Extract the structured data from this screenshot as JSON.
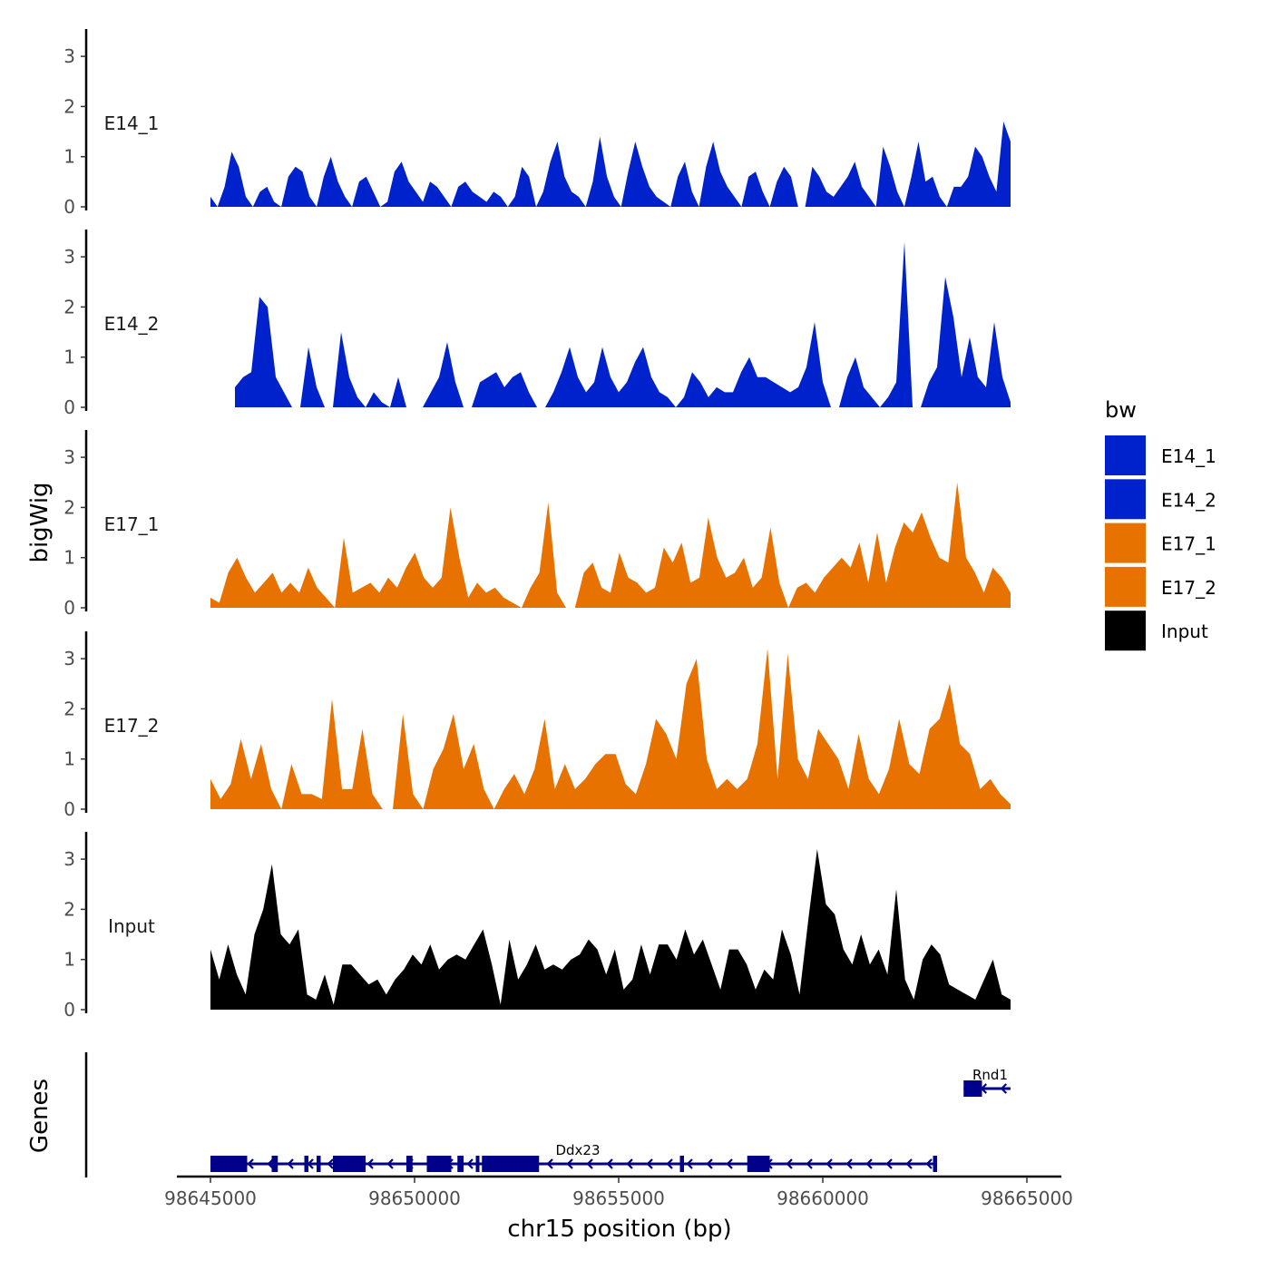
{
  "chart_data": {
    "type": "area",
    "chromosome": "chr15",
    "xlabel": "chr15 position (bp)",
    "ylabel_tracks": "bigWig",
    "ylabel_genes": "Genes",
    "xlim": [
      98644400,
      98665000
    ],
    "x_ticks": [
      98645000,
      98650000,
      98655000,
      98660000,
      98665000
    ],
    "x_tick_labels": [
      "98645000",
      "98650000",
      "98655000",
      "98660000",
      "98665000"
    ],
    "ylim": [
      0,
      3.5
    ],
    "y_ticks": [
      0,
      1,
      2,
      3
    ],
    "y_tick_labels": [
      "0",
      "1",
      "2",
      "3"
    ],
    "legend": {
      "title": "bw",
      "entries": [
        {
          "label": "E14_1",
          "color": "#0022cc"
        },
        {
          "label": "E14_2",
          "color": "#0022cc"
        },
        {
          "label": "E17_1",
          "color": "#e87200"
        },
        {
          "label": "E17_2",
          "color": "#e87200"
        },
        {
          "label": "Input",
          "color": "#000000"
        }
      ]
    },
    "series": [
      {
        "name": "E14_1",
        "color": "#0022cc",
        "x_start": 98645000,
        "x_end": 98664600,
        "values": [
          0.2,
          0,
          0.4,
          1.1,
          0.8,
          0.2,
          0,
          0.3,
          0.4,
          0.1,
          0,
          0.6,
          0.8,
          0.7,
          0.2,
          0,
          0.6,
          1.0,
          0.5,
          0.2,
          0,
          0.5,
          0.6,
          0.3,
          0,
          0.1,
          0.7,
          0.9,
          0.5,
          0.3,
          0.1,
          0.5,
          0.4,
          0.2,
          0,
          0.4,
          0.5,
          0.3,
          0.2,
          0.1,
          0.3,
          0.2,
          0,
          0.2,
          0.8,
          0.6,
          0,
          0.3,
          0.9,
          1.3,
          0.6,
          0.3,
          0.2,
          0,
          0.5,
          1.4,
          0.6,
          0.2,
          0,
          0.7,
          1.3,
          0.8,
          0.4,
          0.2,
          0.1,
          0,
          0.6,
          0.9,
          0.3,
          0,
          0.8,
          1.3,
          0.7,
          0.4,
          0.2,
          0,
          0.6,
          0.7,
          0.3,
          0,
          0.5,
          0.8,
          0.6,
          0,
          0,
          0.8,
          0.6,
          0.3,
          0.2,
          0.4,
          0.6,
          0.9,
          0.4,
          0.2,
          0,
          1.2,
          0.8,
          0.3,
          0,
          0.6,
          1.3,
          0.5,
          0.6,
          0.2,
          0,
          0.4,
          0.4,
          0.6,
          1.2,
          1.0,
          0.6,
          0.3,
          1.7,
          1.3
        ]
      },
      {
        "name": "E14_2",
        "color": "#0022cc",
        "x_start": 98645600,
        "x_end": 98664600,
        "values": [
          0.4,
          0.6,
          0.7,
          2.2,
          2.0,
          0.6,
          0.3,
          0,
          0,
          1.2,
          0.4,
          0,
          0,
          1.5,
          0.6,
          0.2,
          0,
          0.3,
          0.1,
          0,
          0.6,
          0,
          0,
          0,
          0.3,
          0.6,
          1.3,
          0.5,
          0,
          0,
          0.5,
          0.6,
          0.7,
          0.4,
          0.6,
          0.7,
          0.3,
          0,
          0,
          0.3,
          0.7,
          1.2,
          0.6,
          0.3,
          0.5,
          1.2,
          0.6,
          0.3,
          0.5,
          0.9,
          1.2,
          0.6,
          0.3,
          0.2,
          0,
          0.2,
          0.7,
          0.5,
          0.2,
          0.4,
          0.3,
          0.3,
          0.7,
          1.0,
          0.6,
          0.6,
          0.5,
          0.4,
          0.3,
          0.4,
          0.8,
          1.7,
          0.5,
          0,
          0,
          0.6,
          1.0,
          0.4,
          0.2,
          0,
          0.2,
          0.5,
          3.3,
          0,
          0,
          0.5,
          0.8,
          2.6,
          1.8,
          0.6,
          1.4,
          0.6,
          0.4,
          1.7,
          0.6,
          0.1
        ]
      },
      {
        "name": "E17_1",
        "color": "#e87200",
        "x_start": 98645000,
        "x_end": 98664600,
        "values": [
          0.2,
          0.1,
          0.7,
          1.0,
          0.6,
          0.3,
          0.5,
          0.7,
          0.3,
          0.5,
          0.3,
          0.8,
          0.4,
          0.2,
          0,
          1.4,
          0.3,
          0.4,
          0.5,
          0.3,
          0.6,
          0.4,
          0.8,
          1.1,
          0.6,
          0.4,
          0.6,
          2.0,
          1.0,
          0.2,
          0.5,
          0.3,
          0.4,
          0.2,
          0.1,
          0,
          0.4,
          0.7,
          2.1,
          0.3,
          0,
          0,
          0.7,
          0.9,
          0.4,
          0.3,
          1.1,
          0.6,
          0.5,
          0.3,
          0.4,
          1.2,
          0.9,
          1.3,
          0.5,
          0.6,
          1.8,
          1.0,
          0.6,
          0.7,
          1.0,
          0.4,
          0.6,
          1.6,
          0.5,
          0,
          0.4,
          0.5,
          0.3,
          0.6,
          0.8,
          1.0,
          0.8,
          1.3,
          0.5,
          1.5,
          0.5,
          1.2,
          1.7,
          1.5,
          1.9,
          1.4,
          1.0,
          0.9,
          2.5,
          1.0,
          0.7,
          0.3,
          0.8,
          0.6,
          0.3
        ]
      },
      {
        "name": "E17_2",
        "color": "#e87200",
        "x_start": 98645000,
        "x_end": 98664600,
        "values": [
          0.6,
          0.2,
          0.5,
          1.4,
          0.6,
          1.3,
          0.4,
          0,
          0.9,
          0.3,
          0.3,
          0.2,
          2.2,
          0.4,
          0.4,
          1.6,
          0.3,
          0,
          0,
          1.9,
          0.3,
          0,
          0.8,
          1.2,
          1.9,
          0.8,
          1.3,
          0.4,
          0,
          0.4,
          0.7,
          0.3,
          0.8,
          1.8,
          0.4,
          0.9,
          0.4,
          0.6,
          0.9,
          1.1,
          1.1,
          0.5,
          0.3,
          0.9,
          1.8,
          1.5,
          1.0,
          2.5,
          3.0,
          1.0,
          0.4,
          0.6,
          0.4,
          0.6,
          1.3,
          3.2,
          0.6,
          3.1,
          1.0,
          0.6,
          1.6,
          1.3,
          1.0,
          0.4,
          1.5,
          0.6,
          0.3,
          0.8,
          1.8,
          0.9,
          0.7,
          1.6,
          1.8,
          2.5,
          1.3,
          1.1,
          0.4,
          0.6,
          0.3,
          0.1
        ]
      },
      {
        "name": "Input",
        "color": "#000000",
        "x_start": 98645000,
        "x_end": 98664600,
        "values": [
          1.2,
          0.6,
          1.3,
          0.7,
          0.3,
          1.5,
          2.0,
          2.9,
          1.5,
          1.3,
          1.6,
          0.3,
          0.2,
          0.7,
          0.1,
          0.9,
          0.9,
          0.7,
          0.5,
          0.6,
          0.3,
          0.6,
          0.8,
          1.1,
          0.9,
          1.3,
          0.8,
          1.0,
          1.1,
          1.0,
          1.3,
          1.6,
          0.9,
          0.1,
          1.4,
          0.6,
          0.9,
          1.3,
          0.8,
          0.9,
          0.8,
          1.0,
          1.1,
          1.4,
          1.2,
          0.7,
          1.2,
          0.4,
          0.6,
          1.3,
          0.7,
          1.3,
          1.3,
          1.0,
          1.6,
          1.1,
          1.4,
          0.9,
          0.4,
          1.2,
          1.2,
          0.9,
          0.4,
          0.8,
          0.6,
          1.6,
          1.1,
          0.3,
          1.8,
          3.2,
          2.1,
          1.9,
          1.2,
          0.9,
          1.5,
          0.9,
          1.2,
          0.7,
          2.4,
          0.6,
          0.2,
          1.0,
          1.3,
          1.1,
          0.5,
          0.4,
          0.3,
          0.2,
          0.6,
          1.0,
          0.3,
          0.2
        ]
      }
    ],
    "genes": [
      {
        "name": "Ddx23",
        "strand": "-",
        "start": 98645000,
        "end": 98662800,
        "exons": [
          [
            98645000,
            98645900
          ],
          [
            98646500,
            98646650
          ],
          [
            98647300,
            98647400
          ],
          [
            98647600,
            98647700
          ],
          [
            98648000,
            98648800
          ],
          [
            98649800,
            98649950
          ],
          [
            98650300,
            98650900
          ],
          [
            98651050,
            98651200
          ],
          [
            98651500,
            98651550
          ],
          [
            98651650,
            98653050
          ],
          [
            98656500,
            98656600
          ],
          [
            98658150,
            98658700
          ],
          [
            98662700,
            98662800
          ]
        ]
      },
      {
        "name": "Rnd1",
        "strand": "-",
        "start": 98663450,
        "end": 98664600,
        "exons": [
          [
            98663450,
            98663900
          ]
        ]
      }
    ]
  }
}
